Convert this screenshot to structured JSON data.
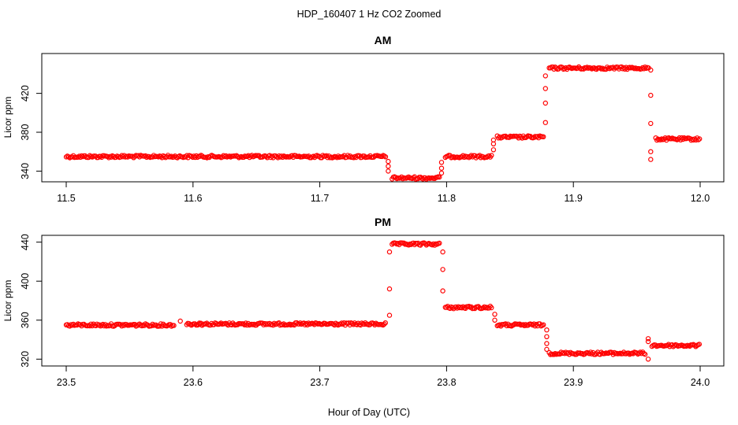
{
  "figure": {
    "title": "HDP_160407  1 Hz CO2 Zoomed",
    "xlabel": "Hour of Day (UTC)"
  },
  "marker_color": "#ff0000",
  "chart_data": [
    {
      "type": "scatter",
      "title": "AM",
      "ylabel": "Licor ppm",
      "xlim": [
        11.5,
        12.0
      ],
      "ylim": [
        329,
        461
      ],
      "xticks": [
        "11.5",
        "11.6",
        "11.7",
        "11.8",
        "11.9",
        "12.0"
      ],
      "yticks": [
        "340",
        "380",
        "420"
      ],
      "segments": [
        {
          "x0": 11.5,
          "x1": 11.752,
          "y": 355
        },
        {
          "x0": 11.757,
          "x1": 11.795,
          "y": 333
        },
        {
          "x0": 11.799,
          "x1": 11.836,
          "y": 355
        },
        {
          "x0": 11.84,
          "x1": 11.877,
          "y": 375
        },
        {
          "x0": 11.881,
          "x1": 11.96,
          "y": 446
        },
        {
          "x0": 11.965,
          "x1": 12.0,
          "y": 373
        }
      ],
      "transitions": [
        {
          "x": 11.754,
          "y": [
            350,
            345,
            340
          ]
        },
        {
          "x": 11.796,
          "y": [
            338,
            343,
            349
          ]
        },
        {
          "x": 11.837,
          "y": [
            362,
            368,
            372
          ]
        },
        {
          "x": 11.878,
          "y": [
            390,
            410,
            425,
            438
          ]
        },
        {
          "x": 11.961,
          "y": [
            444,
            418,
            389,
            360,
            352
          ]
        }
      ]
    },
    {
      "type": "scatter",
      "title": "PM",
      "ylabel": "Licor ppm",
      "xlim": [
        23.5,
        24.0
      ],
      "ylim": [
        313,
        447
      ],
      "xticks": [
        "23.5",
        "23.6",
        "23.7",
        "23.8",
        "23.9",
        "24.0"
      ],
      "yticks": [
        "320",
        "360",
        "400",
        "440"
      ],
      "segments": [
        {
          "x0": 23.5,
          "x1": 23.585,
          "y": 355
        },
        {
          "x0": 23.595,
          "x1": 23.752,
          "y": 356
        },
        {
          "x0": 23.757,
          "x1": 23.795,
          "y": 438
        },
        {
          "x0": 23.799,
          "x1": 23.836,
          "y": 373
        },
        {
          "x0": 23.84,
          "x1": 23.877,
          "y": 355
        },
        {
          "x0": 23.881,
          "x1": 23.957,
          "y": 326
        },
        {
          "x0": 23.962,
          "x1": 24.0,
          "y": 334
        }
      ],
      "blips": [
        {
          "x": 23.59,
          "y": 359
        },
        {
          "x": 23.605,
          "y": 357
        }
      ],
      "transitions": [
        {
          "x": 23.755,
          "y": [
            365,
            392,
            430
          ]
        },
        {
          "x": 23.797,
          "y": [
            430,
            412,
            390
          ]
        },
        {
          "x": 23.838,
          "y": [
            366,
            360
          ]
        },
        {
          "x": 23.879,
          "y": [
            350,
            343,
            336,
            330
          ]
        },
        {
          "x": 23.959,
          "y": [
            320,
            341,
            338
          ]
        }
      ]
    }
  ]
}
